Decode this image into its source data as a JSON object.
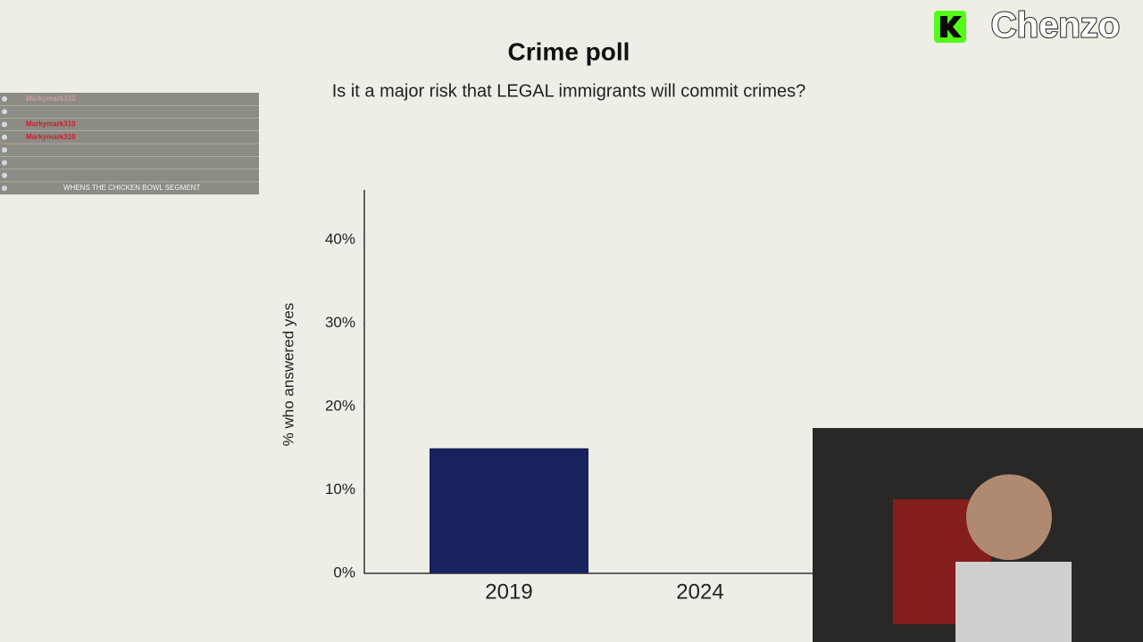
{
  "chart_data": {
    "type": "bar",
    "title": "Crime poll",
    "subtitle": "Is it a major risk that LEGAL immigrants will commit crimes?",
    "y_label": "% who answered yes",
    "categories": [
      "2019",
      "2024"
    ],
    "values": [
      15,
      null
    ],
    "color": "#18225c",
    "ylim": [
      0,
      46
    ],
    "yticks": [
      {
        "value": 0,
        "label": "0%"
      },
      {
        "value": 10,
        "label": "10%"
      },
      {
        "value": 20,
        "label": "20%"
      },
      {
        "value": 30,
        "label": "30%"
      },
      {
        "value": 40,
        "label": "40%"
      }
    ]
  },
  "overlay": {
    "logo": "Chenzo",
    "chat": [
      {
        "row": 0,
        "user": "Markymark310"
      },
      {
        "row": 2,
        "user": "Markymark310"
      },
      {
        "row": 3,
        "user": "Markymark310"
      },
      {
        "row": 7,
        "message": "WHENS THE CHICKEN BOWL SEGMENT"
      }
    ]
  }
}
